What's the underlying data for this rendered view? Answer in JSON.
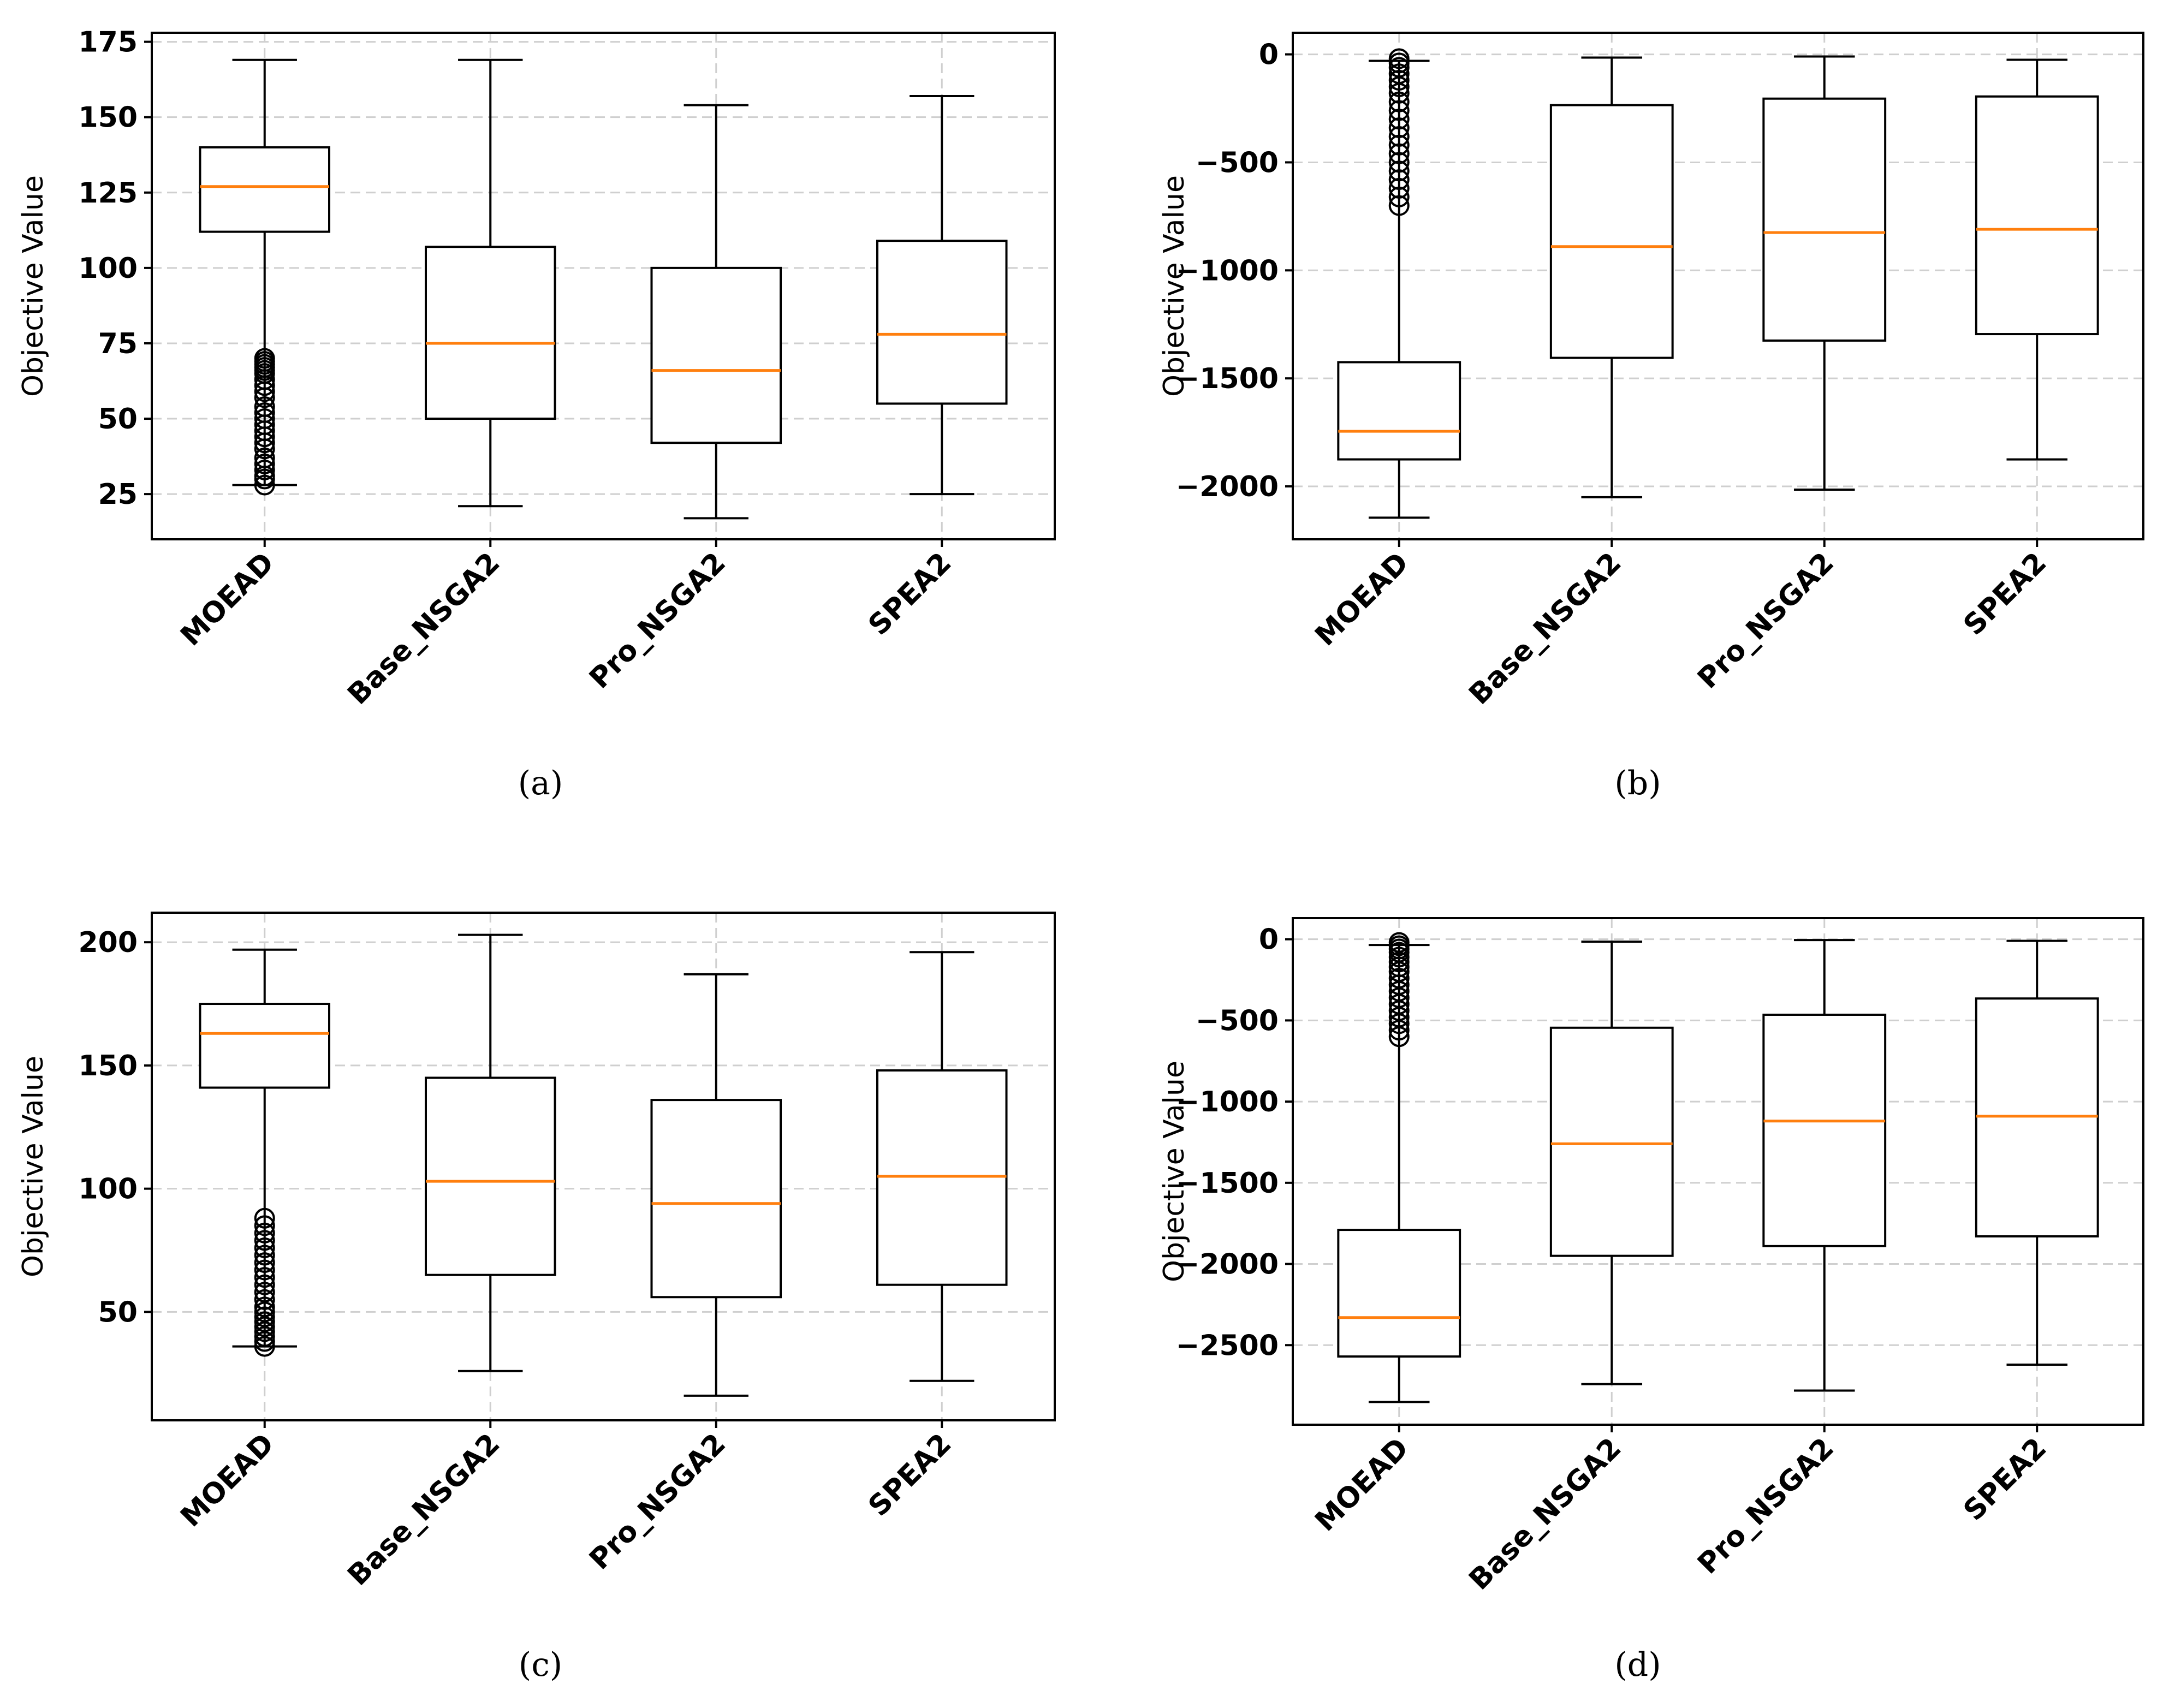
{
  "chart_data": [
    {
      "type": "boxplot",
      "caption": "(a)",
      "ylabel": "Objective Value",
      "ylim": [
        10,
        178
      ],
      "yticks": [
        25,
        50,
        75,
        100,
        125,
        150,
        175
      ],
      "ytick_labels": [
        "25",
        "50",
        "75",
        "100",
        "125",
        "150",
        "175"
      ],
      "categories": [
        "MOEAD",
        "Base_NSGA2",
        "Pro_NSGA2",
        "SPEA2"
      ],
      "series": [
        {
          "name": "MOEAD",
          "whislo": 28,
          "q1": 112,
          "med": 127,
          "q3": 140,
          "whishi": 169,
          "fliers": [
            28,
            30,
            31,
            33,
            35,
            37,
            40,
            42,
            44,
            46,
            48,
            50,
            52,
            54,
            57,
            59,
            61,
            63,
            65,
            66,
            67,
            68,
            69,
            70
          ]
        },
        {
          "name": "Base_NSGA2",
          "whislo": 21,
          "q1": 50,
          "med": 75,
          "q3": 107,
          "whishi": 169,
          "fliers": []
        },
        {
          "name": "Pro_NSGA2",
          "whislo": 17,
          "q1": 42,
          "med": 66,
          "q3": 100,
          "whishi": 154,
          "fliers": []
        },
        {
          "name": "SPEA2",
          "whislo": 25,
          "q1": 55,
          "med": 78,
          "q3": 109,
          "whishi": 157,
          "fliers": []
        }
      ]
    },
    {
      "type": "boxplot",
      "caption": "(b)",
      "ylabel": "Objective Value",
      "ylim": [
        -2245,
        100
      ],
      "yticks": [
        -2000,
        -1500,
        -1000,
        -500,
        0
      ],
      "ytick_labels": [
        "−2000",
        "−1500",
        "−1000",
        "−500",
        "0"
      ],
      "categories": [
        "MOEAD",
        "Base_NSGA2",
        "Pro_NSGA2",
        "SPEA2"
      ],
      "series": [
        {
          "name": "MOEAD",
          "whislo": -2145,
          "q1": -1875,
          "med": -1745,
          "q3": -1425,
          "whishi": -30,
          "fliers": [
            -20,
            -40,
            -60,
            -90,
            -120,
            -150,
            -180,
            -220,
            -260,
            -300,
            -340,
            -380,
            -420,
            -460,
            -500,
            -540,
            -580,
            -620,
            -660,
            -700
          ]
        },
        {
          "name": "Base_NSGA2",
          "whislo": -2050,
          "q1": -1405,
          "med": -890,
          "q3": -235,
          "whishi": -15,
          "fliers": []
        },
        {
          "name": "Pro_NSGA2",
          "whislo": -2015,
          "q1": -1325,
          "med": -825,
          "q3": -205,
          "whishi": -10,
          "fliers": []
        },
        {
          "name": "SPEA2",
          "whislo": -1875,
          "q1": -1295,
          "med": -810,
          "q3": -195,
          "whishi": -25,
          "fliers": []
        }
      ]
    },
    {
      "type": "boxplot",
      "caption": "(c)",
      "ylabel": "Objective Value",
      "ylim": [
        6,
        212
      ],
      "yticks": [
        50,
        100,
        150,
        200
      ],
      "ytick_labels": [
        "50",
        "100",
        "150",
        "200"
      ],
      "categories": [
        "MOEAD",
        "Base_NSGA2",
        "Pro_NSGA2",
        "SPEA2"
      ],
      "series": [
        {
          "name": "MOEAD",
          "whislo": 36,
          "q1": 141,
          "med": 163,
          "q3": 175,
          "whishi": 197,
          "fliers": [
            36,
            38,
            40,
            42,
            44,
            46,
            48,
            50,
            52,
            55,
            58,
            61,
            64,
            67,
            70,
            73,
            76,
            79,
            82,
            85,
            88
          ]
        },
        {
          "name": "Base_NSGA2",
          "whislo": 26,
          "q1": 65,
          "med": 103,
          "q3": 145,
          "whishi": 203,
          "fliers": []
        },
        {
          "name": "Pro_NSGA2",
          "whislo": 16,
          "q1": 56,
          "med": 94,
          "q3": 136,
          "whishi": 187,
          "fliers": []
        },
        {
          "name": "SPEA2",
          "whislo": 22,
          "q1": 61,
          "med": 105,
          "q3": 148,
          "whishi": 196,
          "fliers": []
        }
      ]
    },
    {
      "type": "boxplot",
      "caption": "(d)",
      "ylabel": "Objective Value",
      "ylim": [
        -2990,
        130
      ],
      "yticks": [
        -2500,
        -2000,
        -1500,
        -1000,
        -500,
        0
      ],
      "ytick_labels": [
        "−2500",
        "−2000",
        "−1500",
        "−1000",
        "−500",
        "0"
      ],
      "categories": [
        "MOEAD",
        "Base_NSGA2",
        "Pro_NSGA2",
        "SPEA2"
      ],
      "series": [
        {
          "name": "MOEAD",
          "whislo": -2850,
          "q1": -2570,
          "med": -2330,
          "q3": -1790,
          "whishi": -35,
          "fliers": [
            -20,
            -40,
            -60,
            -80,
            -110,
            -140,
            -170,
            -200,
            -240,
            -280,
            -320,
            -360,
            -400,
            -440,
            -480,
            -520,
            -560,
            -600
          ]
        },
        {
          "name": "Base_NSGA2",
          "whislo": -2740,
          "q1": -1950,
          "med": -1260,
          "q3": -545,
          "whishi": -15,
          "fliers": []
        },
        {
          "name": "Pro_NSGA2",
          "whislo": -2780,
          "q1": -1890,
          "med": -1120,
          "q3": -465,
          "whishi": -5,
          "fliers": []
        },
        {
          "name": "SPEA2",
          "whislo": -2620,
          "q1": -1830,
          "med": -1090,
          "q3": -365,
          "whishi": -10,
          "fliers": []
        }
      ]
    }
  ]
}
